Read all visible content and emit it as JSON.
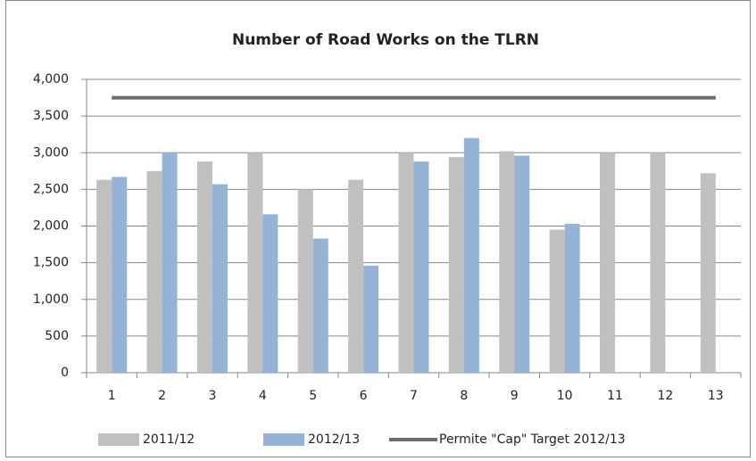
{
  "chart_data": {
    "type": "bar",
    "title": "Number of Road Works on  the TLRN",
    "categories": [
      "1",
      "2",
      "3",
      "4",
      "5",
      "6",
      "7",
      "8",
      "9",
      "10",
      "11",
      "12",
      "13"
    ],
    "series": [
      {
        "name": "2011/12",
        "color": "#c0c0c0",
        "values": [
          2630,
          2750,
          2880,
          3000,
          2500,
          2630,
          3000,
          2940,
          3020,
          1950,
          3000,
          3000,
          2720
        ]
      },
      {
        "name": "2012/13",
        "color": "#95b3d7",
        "values": [
          2670,
          3000,
          2570,
          2160,
          1830,
          1460,
          2880,
          3200,
          2960,
          2030,
          null,
          null,
          null
        ]
      },
      {
        "name": "Permite \"Cap\" Target 2012/13",
        "color": "#6b6b6b",
        "type": "line",
        "values": [
          3750,
          3750,
          3750,
          3750,
          3750,
          3750,
          3750,
          3750,
          3750,
          3750,
          3750,
          3750,
          3750
        ]
      }
    ],
    "ylim": [
      0,
      4000
    ],
    "yticks": [
      0,
      500,
      {
        "value": 1000,
        "label": "1,000"
      },
      {
        "value": 1500,
        "label": "1,500"
      },
      {
        "value": 2000,
        "label": "2,000"
      },
      {
        "value": 2500,
        "label": "2,500"
      },
      {
        "value": 3000,
        "label": "3,000"
      },
      {
        "value": 3500,
        "label": "3,500"
      },
      {
        "value": 4000,
        "label": "4,000"
      }
    ],
    "grid": true,
    "legend": "bottom"
  }
}
